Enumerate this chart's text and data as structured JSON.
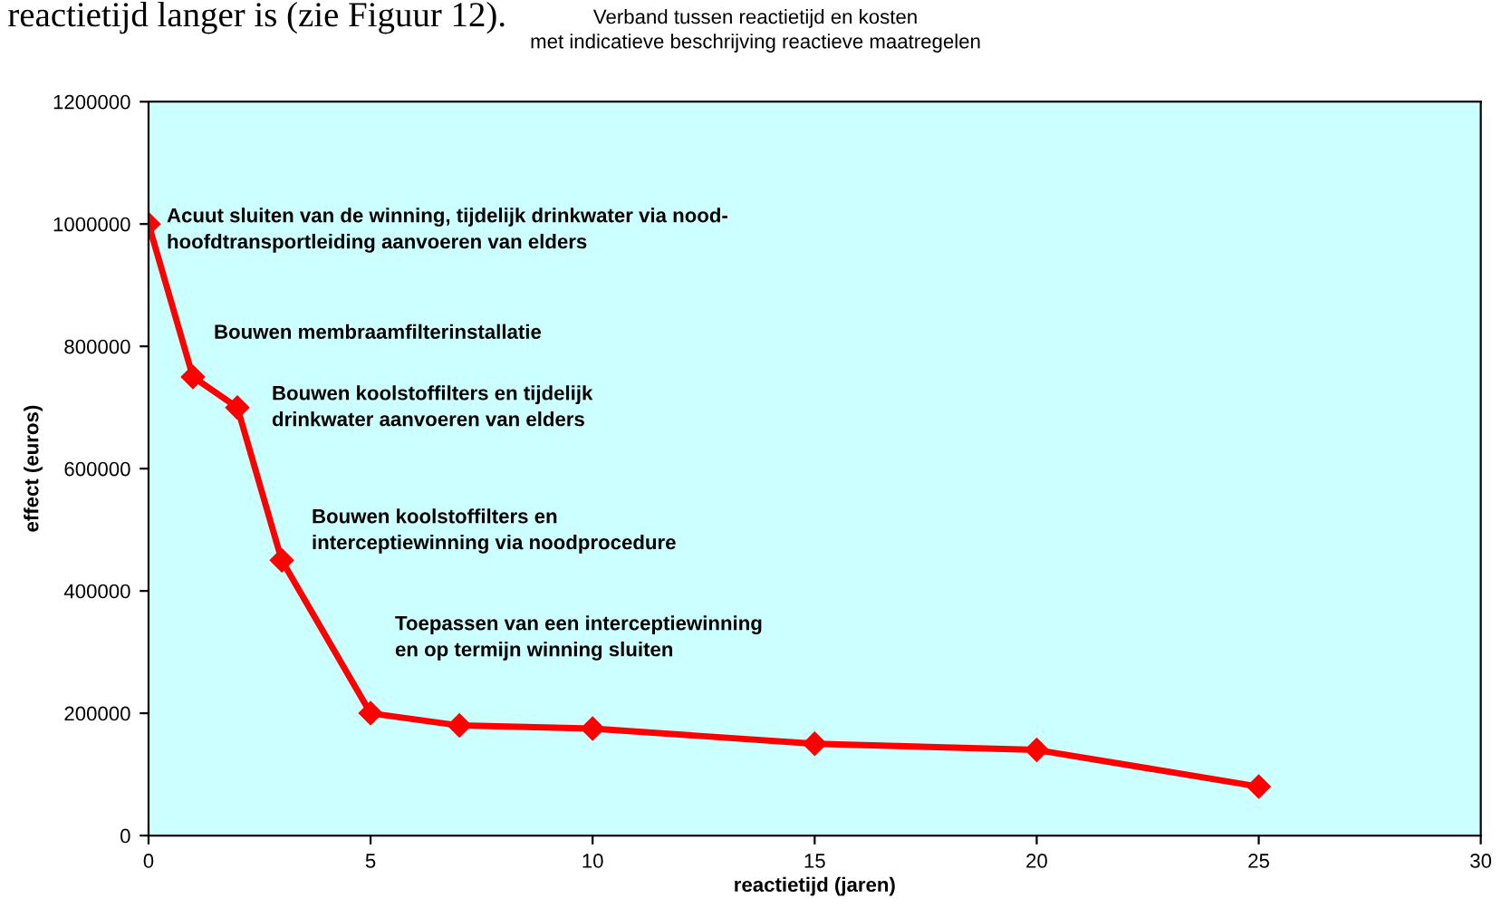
{
  "chart_data": {
    "type": "line",
    "title": "Verband tussen reactietijd en kosten\nmet indicatieve beschrijving reactieve maatregelen",
    "xlabel": "reactietijd (jaren)",
    "ylabel": "effect (euros)",
    "x": [
      0,
      1,
      2,
      3,
      5,
      7,
      10,
      15,
      20,
      25
    ],
    "series": [
      {
        "color": "#ff0000",
        "values": [
          1000000,
          750000,
          700000,
          450000,
          200000,
          180000,
          175000,
          150000,
          140000,
          80000
        ]
      }
    ],
    "xlim": [
      0,
      30
    ],
    "xticks": [
      0,
      5,
      10,
      15,
      20,
      25,
      30
    ],
    "ylim": [
      0,
      1200000
    ],
    "yticks": [
      0,
      200000,
      400000,
      600000,
      800000,
      1000000,
      1200000
    ],
    "grid": false,
    "legend": false,
    "marker": "diamond",
    "line_style": "solid",
    "annotations": [
      "reactietijd langer is (zie Figuur 12).",
      "Acuut sluiten van de winning, tijdelijk drinkwater via nood-\nhoofdtransportleiding aanvoeren van elders",
      "Bouwen membraamfilterinstallatie",
      "Bouwen koolstoffilters en tijdelijk\ndrinkwater aanvoeren van elders",
      "Bouwen koolstoffilters en\ninterceptiewinning via noodprocedure",
      "Toepassen van een interceptiewinning\nen op termijn winning sluiten"
    ]
  }
}
